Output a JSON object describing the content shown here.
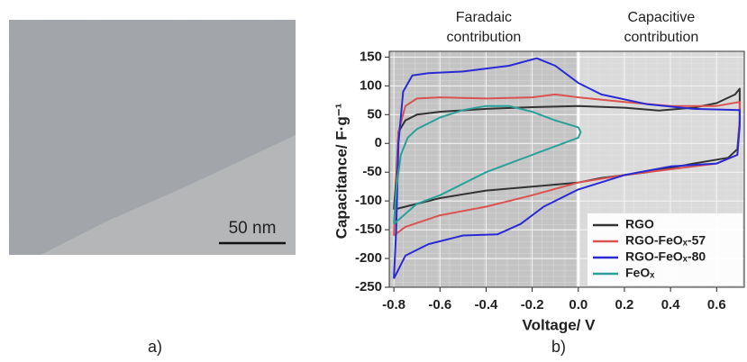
{
  "panels": {
    "a": {
      "label": "a)",
      "scale_bar": "50 nm"
    },
    "b": {
      "label": "b)"
    }
  },
  "chart_data": {
    "type": "line",
    "annotations": [
      [
        "Faradaic",
        "contribution"
      ],
      [
        "Capacitive",
        "contribution"
      ]
    ],
    "x_label": "Voltage/ V",
    "y_label": "Capacitance/ F·g⁻¹",
    "xlim": [
      -0.82,
      0.72
    ],
    "ylim": [
      -250,
      160
    ],
    "xticks": [
      -0.8,
      -0.6,
      -0.4,
      -0.2,
      {
        "value": 0,
        "label": "0.0"
      },
      0.2,
      0.4,
      0.6
    ],
    "yticks": [
      -250,
      -200,
      -150,
      -100,
      -50,
      0,
      50,
      100,
      150
    ],
    "grid": true,
    "legend": "lower right",
    "series": [
      {
        "name": "RGO",
        "color": "#333333",
        "x": [
          -0.8,
          -0.79,
          -0.78,
          -0.75,
          -0.7,
          -0.6,
          -0.4,
          -0.2,
          0,
          0.2,
          0.35,
          0.5,
          0.6,
          0.68,
          0.7,
          0.7,
          0.69,
          0.65,
          0.5,
          0.3,
          0.1,
          0,
          -0.2,
          -0.4,
          -0.6,
          -0.75,
          -0.8
        ],
        "values": [
          -115,
          -60,
          20,
          40,
          50,
          55,
          60,
          63,
          65,
          62,
          57,
          62,
          70,
          85,
          95,
          40,
          -10,
          -25,
          -35,
          -50,
          -60,
          -68,
          -75,
          -82,
          -95,
          -110,
          -115
        ]
      },
      {
        "name": "RGO-FeOₓ-57",
        "color": "#d9534f",
        "x": [
          -0.8,
          -0.79,
          -0.78,
          -0.75,
          -0.7,
          -0.6,
          -0.4,
          -0.2,
          -0.1,
          0,
          0.2,
          0.4,
          0.6,
          0.7,
          0.7,
          0.69,
          0.6,
          0.4,
          0.2,
          0,
          -0.2,
          -0.4,
          -0.6,
          -0.75,
          -0.8
        ],
        "values": [
          -160,
          -80,
          20,
          65,
          78,
          80,
          78,
          80,
          85,
          80,
          72,
          65,
          65,
          72,
          40,
          -20,
          -35,
          -45,
          -55,
          -68,
          -90,
          -110,
          -125,
          -145,
          -160
        ]
      },
      {
        "name": "RGO-FeOₓ-80",
        "color": "#2a2ad4",
        "x": [
          -0.8,
          -0.79,
          -0.78,
          -0.76,
          -0.72,
          -0.65,
          -0.5,
          -0.3,
          -0.18,
          -0.1,
          0,
          0.1,
          0.3,
          0.5,
          0.7,
          0.7,
          0.69,
          0.6,
          0.4,
          0.2,
          0,
          -0.15,
          -0.25,
          -0.35,
          -0.5,
          -0.65,
          -0.75,
          -0.8
        ],
        "values": [
          -235,
          -150,
          0,
          90,
          118,
          122,
          125,
          135,
          148,
          135,
          105,
          85,
          68,
          60,
          58,
          30,
          -20,
          -35,
          -40,
          -55,
          -80,
          -110,
          -140,
          -158,
          -160,
          -175,
          -195,
          -235
        ]
      },
      {
        "name": "FeOₓ",
        "color": "#2aa198",
        "x": [
          -0.8,
          -0.79,
          -0.77,
          -0.74,
          -0.7,
          -0.6,
          -0.5,
          -0.4,
          -0.3,
          -0.2,
          -0.1,
          0,
          0.01,
          0,
          -0.1,
          -0.2,
          -0.3,
          -0.4,
          -0.5,
          -0.6,
          -0.7,
          -0.8
        ],
        "values": [
          -140,
          -80,
          -20,
          10,
          25,
          45,
          58,
          65,
          65,
          55,
          40,
          28,
          20,
          10,
          -5,
          -20,
          -35,
          -50,
          -70,
          -90,
          -105,
          -140
        ]
      }
    ]
  }
}
